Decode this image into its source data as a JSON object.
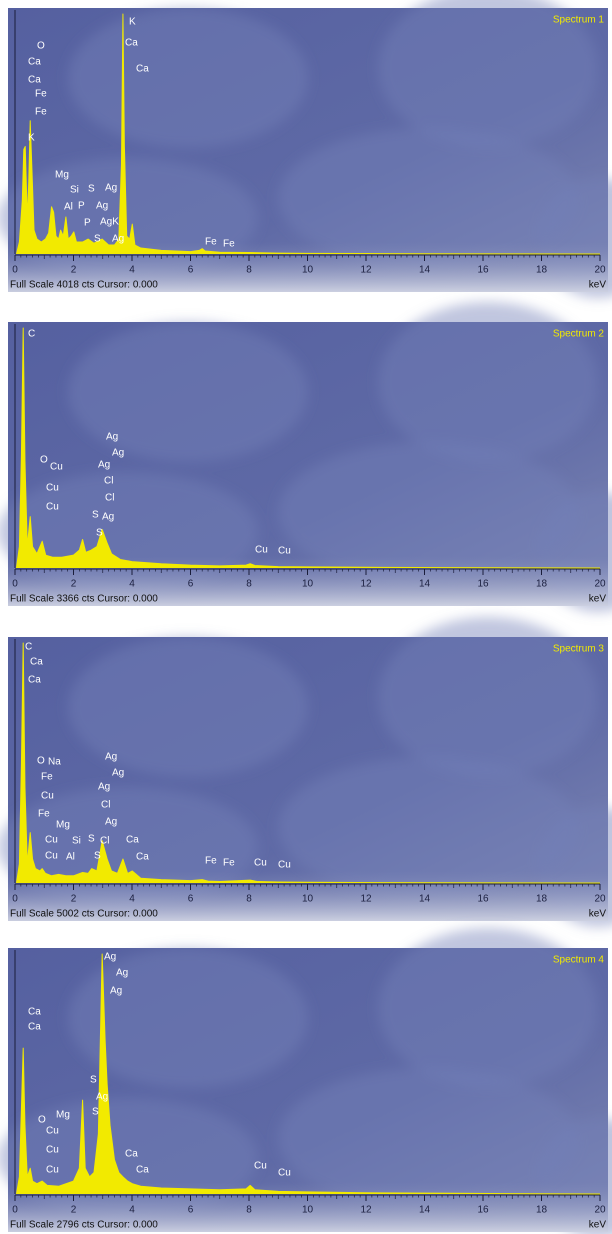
{
  "chart_data": [
    {
      "type": "area",
      "title": "Spectrum 1",
      "footer": "Full Scale 4018 cts Cursor: 0.000",
      "x_label": "keV",
      "color": "#f2ea00",
      "xlim": [
        0,
        20
      ],
      "xticks": [
        0,
        2,
        4,
        6,
        8,
        10,
        12,
        14,
        16,
        18,
        20
      ],
      "ylim": [
        0,
        4018
      ],
      "x": [
        0.05,
        0.15,
        0.25,
        0.3,
        0.35,
        0.42,
        0.47,
        0.52,
        0.58,
        0.65,
        0.75,
        0.9,
        1.04,
        1.15,
        1.25,
        1.32,
        1.4,
        1.49,
        1.56,
        1.65,
        1.74,
        1.82,
        1.92,
        2.01,
        2.1,
        2.31,
        2.5,
        2.7,
        2.98,
        3.2,
        3.4,
        3.55,
        3.64,
        3.69,
        3.74,
        3.82,
        3.92,
        4.01,
        4.1,
        4.3,
        5,
        6,
        6.3,
        6.4,
        6.5,
        7,
        8,
        9,
        10,
        12,
        14,
        17,
        20
      ],
      "values": [
        0,
        200,
        900,
        1750,
        1800,
        600,
        1200,
        2230,
        1400,
        400,
        250,
        200,
        250,
        350,
        790,
        700,
        300,
        250,
        400,
        300,
        620,
        250,
        300,
        370,
        200,
        200,
        250,
        180,
        250,
        150,
        150,
        250,
        1500,
        4018,
        1800,
        300,
        250,
        500,
        150,
        100,
        60,
        40,
        60,
        90,
        50,
        30,
        25,
        15,
        10,
        8,
        5,
        3,
        0
      ],
      "annotations": [
        "K",
        "Ca",
        "Ca",
        "O",
        "Ca",
        "Ca",
        "Fe",
        "Fe",
        "K",
        "Mg",
        "Si",
        "S",
        "Ag",
        "Al",
        "P",
        "Ag",
        "P",
        "AgK",
        "S",
        "Ag",
        "Fe",
        "Fe"
      ]
    },
    {
      "type": "area",
      "title": "Spectrum 2",
      "footer": "Full Scale 3366 cts Cursor: 0.000",
      "x_label": "keV",
      "color": "#f2ea00",
      "xlim": [
        0,
        20
      ],
      "xticks": [
        0,
        2,
        4,
        6,
        8,
        10,
        12,
        14,
        16,
        18,
        20
      ],
      "ylim": [
        0,
        3366
      ],
      "x": [
        0.05,
        0.15,
        0.22,
        0.28,
        0.34,
        0.42,
        0.52,
        0.6,
        0.75,
        0.93,
        1.05,
        1.3,
        1.6,
        2.0,
        2.2,
        2.31,
        2.42,
        2.6,
        2.8,
        2.98,
        3.15,
        3.3,
        3.6,
        4,
        5,
        6,
        7,
        7.9,
        8.04,
        8.2,
        9,
        10,
        12,
        15,
        20
      ],
      "values": [
        0,
        300,
        1600,
        3366,
        1500,
        300,
        720,
        300,
        200,
        375,
        180,
        150,
        150,
        180,
        250,
        400,
        220,
        250,
        300,
        540,
        350,
        200,
        120,
        90,
        60,
        40,
        30,
        40,
        60,
        35,
        20,
        15,
        10,
        5,
        0
      ],
      "annotations": [
        "C",
        "Ag",
        "Ag",
        "Ag",
        "Cl",
        "Cl",
        "O",
        "Cu",
        "Cu",
        "Cu",
        "S",
        "Ag",
        "S",
        "Cu",
        "Cu"
      ]
    },
    {
      "type": "area",
      "title": "Spectrum 3",
      "footer": "Full Scale 5002 cts Cursor: 0.000",
      "x_label": "keV",
      "color": "#f2ea00",
      "xlim": [
        0,
        20
      ],
      "xticks": [
        0,
        2,
        4,
        6,
        8,
        10,
        12,
        14,
        16,
        18,
        20
      ],
      "ylim": [
        0,
        5002
      ],
      "x": [
        0.05,
        0.15,
        0.22,
        0.28,
        0.34,
        0.42,
        0.52,
        0.6,
        0.7,
        0.85,
        0.93,
        1.04,
        1.25,
        1.49,
        1.74,
        2.0,
        2.31,
        2.5,
        2.62,
        2.8,
        2.98,
        3.15,
        3.3,
        3.5,
        3.69,
        3.85,
        4.01,
        4.3,
        5,
        6,
        6.4,
        6.6,
        7,
        8.04,
        8.3,
        9,
        10,
        13,
        20
      ],
      "values": [
        0,
        400,
        2500,
        5002,
        2000,
        400,
        1050,
        500,
        300,
        250,
        300,
        200,
        150,
        180,
        150,
        150,
        220,
        200,
        300,
        250,
        880,
        500,
        250,
        200,
        500,
        200,
        250,
        100,
        70,
        50,
        70,
        40,
        30,
        60,
        30,
        20,
        15,
        8,
        0
      ],
      "annotations": [
        "C",
        "Ca",
        "Ca",
        "O",
        "Na",
        "Fe",
        "Cu",
        "Fe",
        "Mg",
        "Cu",
        "Si",
        "S",
        "Cl",
        "Cu",
        "Al",
        "S",
        "Ag",
        "Ag",
        "Ag",
        "Cl",
        "Ag",
        "Ca",
        "Ca",
        "Fe",
        "Fe",
        "Cu",
        "Cu"
      ]
    },
    {
      "type": "area",
      "title": "Spectrum 4",
      "footer": "Full Scale 2796 cts Cursor: 0.000",
      "x_label": "keV",
      "color": "#f2ea00",
      "xlim": [
        0,
        20
      ],
      "xticks": [
        0,
        2,
        4,
        6,
        8,
        10,
        12,
        14,
        16,
        18,
        20
      ],
      "ylim": [
        0,
        2796
      ],
      "x": [
        0.05,
        0.15,
        0.22,
        0.28,
        0.34,
        0.42,
        0.52,
        0.6,
        0.75,
        0.93,
        1.1,
        1.5,
        2.0,
        2.2,
        2.31,
        2.4,
        2.55,
        2.7,
        2.85,
        2.98,
        3.08,
        3.15,
        3.25,
        3.4,
        3.55,
        3.69,
        3.85,
        4.01,
        4.3,
        5,
        6,
        7,
        7.9,
        8.04,
        8.2,
        9,
        10,
        12,
        15,
        20
      ],
      "values": [
        0,
        200,
        1000,
        1700,
        800,
        200,
        300,
        150,
        120,
        150,
        100,
        90,
        150,
        300,
        1094,
        300,
        200,
        250,
        700,
        2796,
        1800,
        1280,
        800,
        400,
        250,
        200,
        150,
        120,
        90,
        70,
        60,
        50,
        60,
        100,
        50,
        30,
        25,
        15,
        8,
        0
      ],
      "annotations": [
        "Ag",
        "Ag",
        "Ag",
        "Ca",
        "Ca",
        "S",
        "Ag",
        "S",
        "O",
        "Mg",
        "Cu",
        "Cu",
        "Cu",
        "Ca",
        "Ca",
        "Cu",
        "Cu"
      ]
    }
  ]
}
